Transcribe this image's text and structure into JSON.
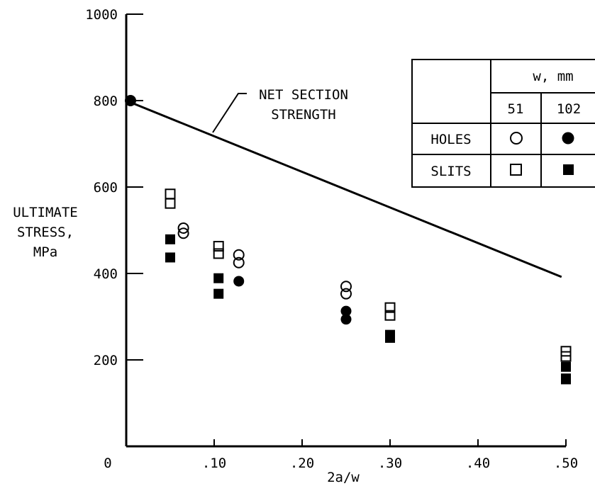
{
  "chart_data": {
    "type": "scatter",
    "xlabel": "2a/w",
    "ylabel_lines": [
      "ULTIMATE",
      "STRESS,",
      "MPa"
    ],
    "xlim": [
      0,
      0.5
    ],
    "ylim": [
      0,
      1000
    ],
    "x_ticks": [
      {
        "value": 0,
        "label": "0"
      },
      {
        "value": 0.1,
        "label": ".10"
      },
      {
        "value": 0.2,
        "label": ".20"
      },
      {
        "value": 0.3,
        "label": ".30"
      },
      {
        "value": 0.4,
        "label": ".40"
      },
      {
        "value": 0.5,
        "label": ".50"
      }
    ],
    "y_ticks": [
      {
        "value": 200,
        "label": "200"
      },
      {
        "value": 400,
        "label": "400"
      },
      {
        "value": 600,
        "label": "600"
      },
      {
        "value": 800,
        "label": "800"
      },
      {
        "value": 1000,
        "label": "1000"
      }
    ],
    "grid": false,
    "reference_line": {
      "label_lines": [
        "NET SECTION",
        "STRENGTH"
      ],
      "points": [
        [
          0,
          800
        ],
        [
          0.495,
          392
        ]
      ],
      "start_marker": "filled-circle"
    },
    "legend": {
      "placement": "top-right",
      "header": "w, mm",
      "columns": [
        "51",
        "102"
      ],
      "rows": [
        {
          "label": "HOLES",
          "symbols": [
            "open-circle",
            "filled-circle"
          ]
        },
        {
          "label": "SLITS",
          "symbols": [
            "open-square",
            "filled-square"
          ]
        }
      ]
    },
    "series": [
      {
        "symbol": "open-circle",
        "x": [
          0.065,
          0.065,
          0.128,
          0.128,
          0.25,
          0.25
        ],
        "y": [
          505,
          493,
          443,
          425,
          370,
          353
        ]
      },
      {
        "symbol": "filled-circle",
        "x": [
          0.128,
          0.25,
          0.25
        ],
        "y": [
          382,
          313,
          294
        ]
      },
      {
        "symbol": "open-square",
        "x": [
          0.05,
          0.05,
          0.105,
          0.105,
          0.3,
          0.3,
          0.5,
          0.5
        ],
        "y": [
          584,
          562,
          463,
          446,
          321,
          303,
          220,
          208
        ]
      },
      {
        "symbol": "filled-square",
        "x": [
          0.05,
          0.05,
          0.105,
          0.105,
          0.3,
          0.3,
          0.5,
          0.5,
          0.5
        ],
        "y": [
          479,
          437,
          389,
          353,
          258,
          251,
          184,
          157,
          155
        ]
      }
    ]
  }
}
